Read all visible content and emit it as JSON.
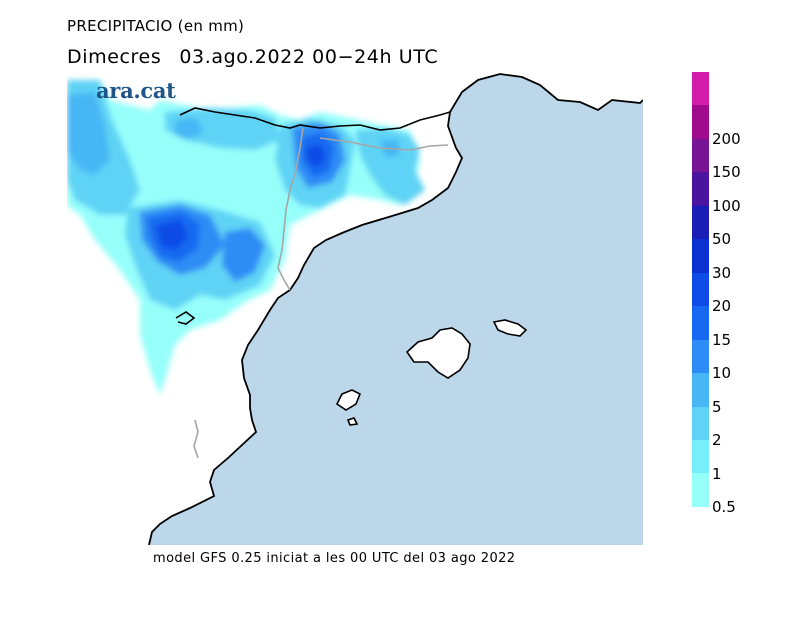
{
  "header": {
    "title": "PRECIPITACIO (en mm)",
    "day": "Dimecres",
    "period": "03.ago.2022 00−24h UTC"
  },
  "logo": {
    "text": "ara.cat",
    "color": "#1f5687"
  },
  "footer": {
    "text": "model GFS 0.25 iniciat a les 00 UTC del 03 ago 2022"
  },
  "map": {
    "region": "Catalunya i Illes Balears",
    "sea_color": "#bcd6ea",
    "land_color": "#ffffff",
    "border_color": "#a6a6a6",
    "coast_color": "#000000"
  },
  "legend": {
    "unit": "mm",
    "levels": [
      {
        "label": "0.5",
        "color": "#96fffa"
      },
      {
        "label": "1",
        "color": "#78eefa"
      },
      {
        "label": "2",
        "color": "#5fd3f5"
      },
      {
        "label": "5",
        "color": "#46b6f5"
      },
      {
        "label": "10",
        "color": "#2d8cf5"
      },
      {
        "label": "15",
        "color": "#1669f0"
      },
      {
        "label": "20",
        "color": "#0f4be6"
      },
      {
        "label": "30",
        "color": "#0a32d2"
      },
      {
        "label": "50",
        "color": "#1a1eb4"
      },
      {
        "label": "100",
        "color": "#4b14a0"
      },
      {
        "label": "150",
        "color": "#781496"
      },
      {
        "label": "200",
        "color": "#a00a8c"
      },
      {
        "label": "",
        "color": "#d21eaa"
      }
    ]
  }
}
